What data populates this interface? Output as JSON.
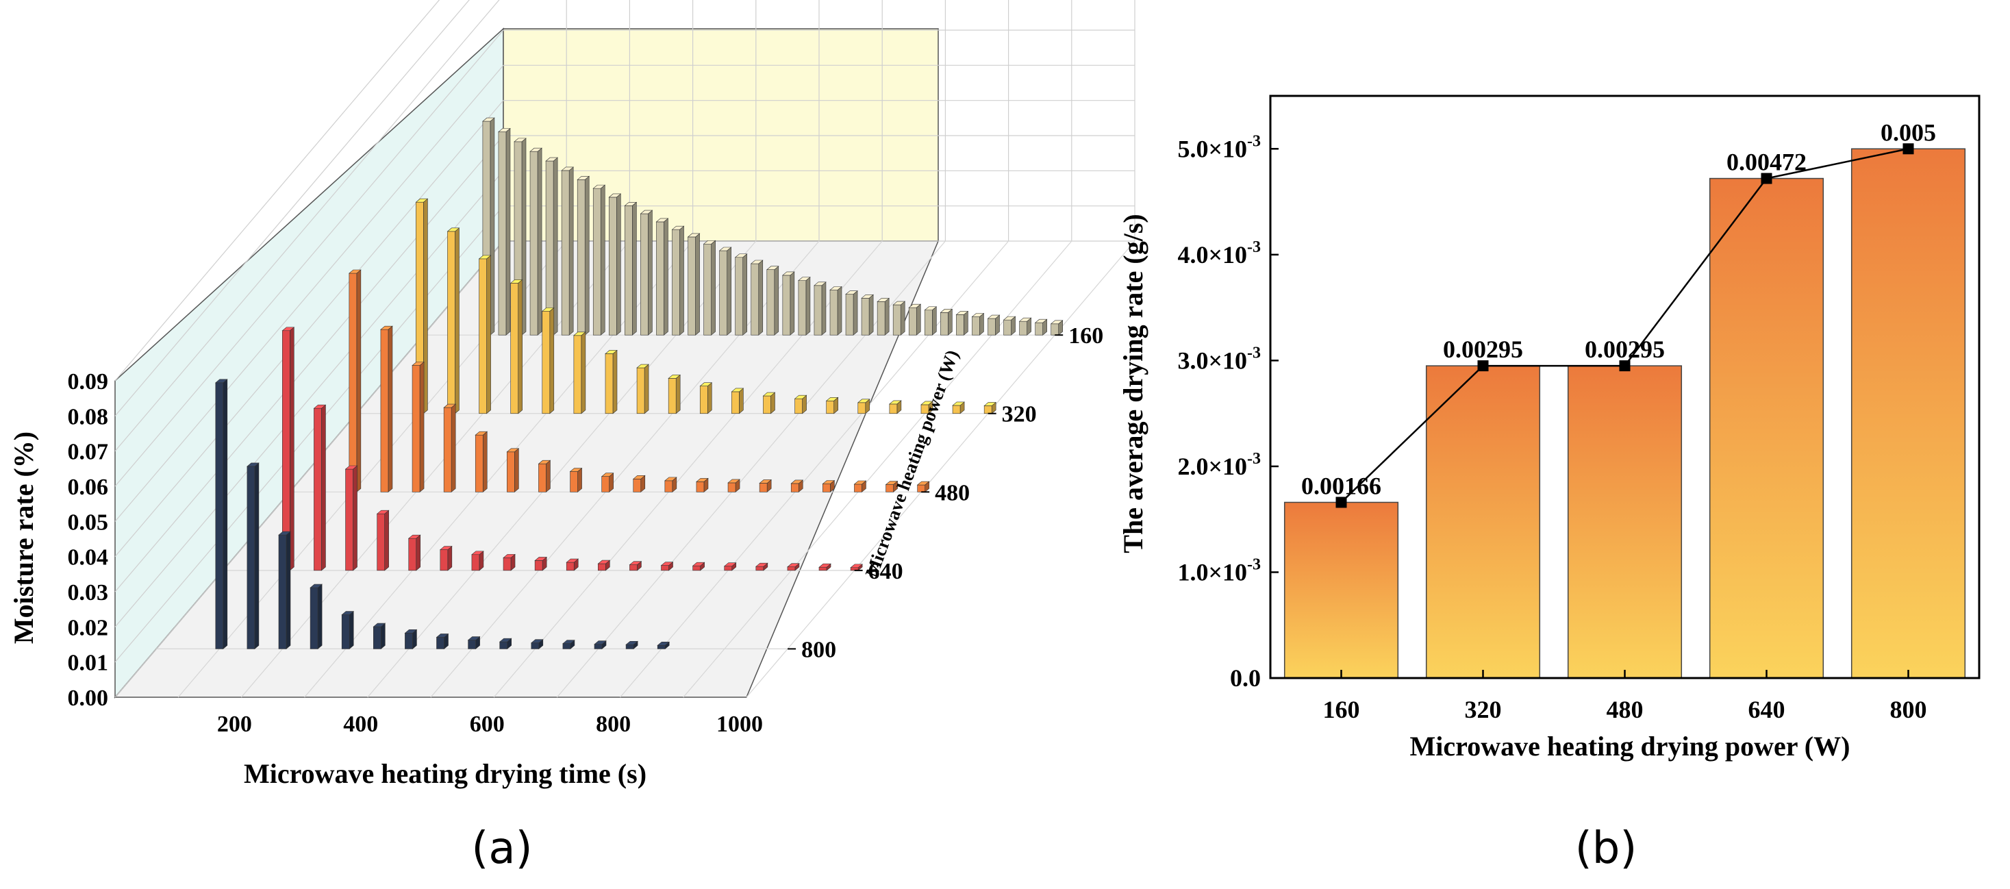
{
  "chart_data": [
    {
      "panel": "(a)",
      "type": "bar",
      "subtype": "3d-bar",
      "xlabel": "Microwave heating drying time (s)",
      "ylabel": "Moisture rate (%)",
      "zlabel": "Microwave heating power (W)",
      "xticks": [
        "200",
        "400",
        "600",
        "800",
        "1000"
      ],
      "yticks": [
        "0.00",
        "0.01",
        "0.02",
        "0.03",
        "0.04",
        "0.05",
        "0.06",
        "0.07",
        "0.08",
        "0.09"
      ],
      "zticks": [
        "160",
        "320",
        "480",
        "640",
        "800"
      ],
      "xlim": [
        0,
        1000
      ],
      "ylim": [
        0,
        0.09
      ],
      "series": [
        {
          "name": "800",
          "color": "#2b3a55",
          "x": [
            100,
            150,
            200,
            250,
            300,
            350,
            400,
            450,
            500,
            550,
            600,
            650,
            700,
            750,
            800
          ],
          "values": [
            0.0757,
            0.0519,
            0.0324,
            0.0174,
            0.0097,
            0.0063,
            0.0045,
            0.0033,
            0.0025,
            0.002,
            0.0017,
            0.0015,
            0.0013,
            0.0012,
            0.001
          ]
        },
        {
          "name": "640",
          "color": "#e0464a",
          "x": [
            100,
            150,
            200,
            250,
            300,
            350,
            400,
            450,
            500,
            550,
            600,
            650,
            700,
            750,
            800,
            850,
            900,
            950,
            1000
          ],
          "values": [
            0.0682,
            0.0461,
            0.0288,
            0.0161,
            0.0091,
            0.0059,
            0.0045,
            0.0036,
            0.0028,
            0.0023,
            0.0019,
            0.0016,
            0.0014,
            0.0013,
            0.0012,
            0.0011,
            0.001,
            0.0009,
            0.0008
          ]
        },
        {
          "name": "480",
          "color": "#f07e3c",
          "x": [
            100,
            150,
            200,
            250,
            300,
            350,
            400,
            450,
            500,
            550,
            600,
            650,
            700,
            750,
            800,
            850,
            900,
            950,
            1000
          ],
          "values": [
            0.0622,
            0.0462,
            0.036,
            0.024,
            0.0162,
            0.0114,
            0.008,
            0.0058,
            0.0044,
            0.0037,
            0.0032,
            0.0029,
            0.0026,
            0.0025,
            0.0024,
            0.0023,
            0.0022,
            0.0021,
            0.002
          ]
        },
        {
          "name": "320",
          "color": "#f6c24f",
          "x": [
            100,
            150,
            200,
            250,
            300,
            350,
            400,
            450,
            500,
            550,
            600,
            650,
            700,
            750,
            800,
            850,
            900,
            950,
            1000
          ],
          "values": [
            0.0601,
            0.0518,
            0.044,
            0.0371,
            0.0291,
            0.0222,
            0.017,
            0.013,
            0.01,
            0.0078,
            0.0062,
            0.005,
            0.0042,
            0.0036,
            0.0031,
            0.0027,
            0.0025,
            0.0023,
            0.0022
          ]
        },
        {
          "name": "160",
          "color": "#c7c1a6",
          "x": [
            100,
            125,
            150,
            175,
            200,
            225,
            250,
            275,
            300,
            325,
            350,
            375,
            400,
            425,
            450,
            475,
            500,
            525,
            550,
            575,
            600,
            625,
            650,
            675,
            700,
            725,
            750,
            775,
            800,
            825,
            850,
            875,
            900,
            925,
            950,
            975,
            1000
          ],
          "values": [
            0.0608,
            0.0578,
            0.055,
            0.0522,
            0.0495,
            0.0468,
            0.0442,
            0.0417,
            0.0392,
            0.0368,
            0.0345,
            0.0322,
            0.03,
            0.0279,
            0.0259,
            0.024,
            0.0221,
            0.0203,
            0.0186,
            0.017,
            0.0155,
            0.0141,
            0.0128,
            0.0116,
            0.0105,
            0.0095,
            0.0086,
            0.0078,
            0.0071,
            0.0064,
            0.0058,
            0.0052,
            0.0047,
            0.0043,
            0.0039,
            0.0035,
            0.0032
          ]
        }
      ]
    },
    {
      "panel": "(b)",
      "type": "bar",
      "xlabel": "Microwave heating drying power (W)",
      "ylabel": "The average drying rate (g/s)",
      "categories": [
        "160",
        "320",
        "480",
        "640",
        "800"
      ],
      "values": [
        0.00166,
        0.00295,
        0.00295,
        0.00472,
        0.005
      ],
      "value_labels": [
        "0.00166",
        "0.00295",
        "0.00295",
        "0.00472",
        "0.005"
      ],
      "yticks": [
        {
          "mant": "0.0",
          "exp": ""
        },
        {
          "mant": "1.0×10",
          "exp": "-3"
        },
        {
          "mant": "2.0×10",
          "exp": "-3"
        },
        {
          "mant": "3.0×10",
          "exp": "-3"
        },
        {
          "mant": "4.0×10",
          "exp": "-3"
        },
        {
          "mant": "5.0×10",
          "exp": "-3"
        }
      ],
      "ylim": [
        0,
        0.0055
      ],
      "bar_gradient": [
        "#ec7a3c",
        "#fbd35c"
      ],
      "line_overlay": true
    }
  ],
  "colors": {
    "back_wall": "#fdfbd6",
    "side_wall": "#e6f6f4",
    "floor": "#f2f2f2",
    "grid": "#cfcfcf"
  }
}
